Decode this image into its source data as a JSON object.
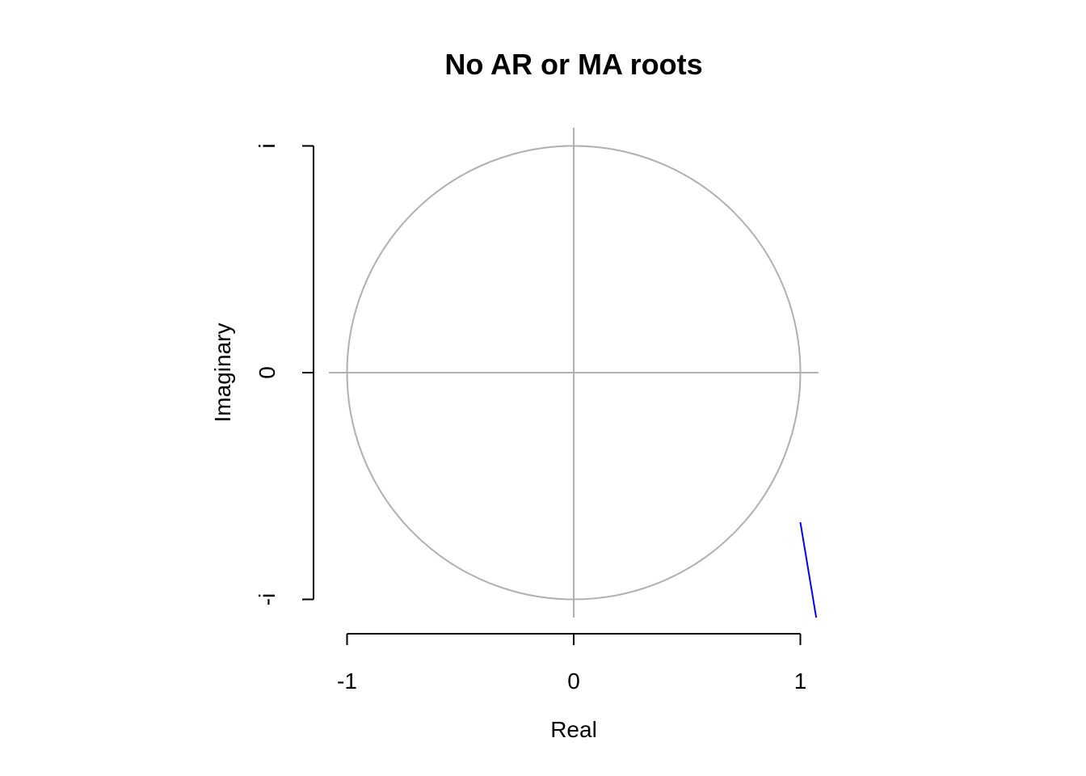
{
  "chart_data": {
    "type": "scatter",
    "title": "No AR or MA roots",
    "xlabel": "Real",
    "ylabel": "Imaginary",
    "xlim": [
      -1,
      1
    ],
    "ylim": [
      -1,
      1
    ],
    "x_ticks": [
      {
        "value": -1,
        "label": "-1"
      },
      {
        "value": 0,
        "label": "0"
      },
      {
        "value": 1,
        "label": "1"
      }
    ],
    "y_ticks": [
      {
        "value": -1,
        "label": "-i"
      },
      {
        "value": 0,
        "label": "0"
      },
      {
        "value": 1,
        "label": "i"
      }
    ],
    "unit_circle": {
      "center": [
        0,
        0
      ],
      "radius": 1,
      "color": "#b0b0b0"
    },
    "reference_lines": {
      "x": 0,
      "y": 0,
      "color": "#b0b0b0"
    },
    "series": [],
    "annotation_segment": {
      "x": [
        1.0,
        1.07
      ],
      "y": [
        -0.66,
        -1.08
      ],
      "color": "#0000ff"
    },
    "grid": false,
    "aspect": "equal"
  }
}
